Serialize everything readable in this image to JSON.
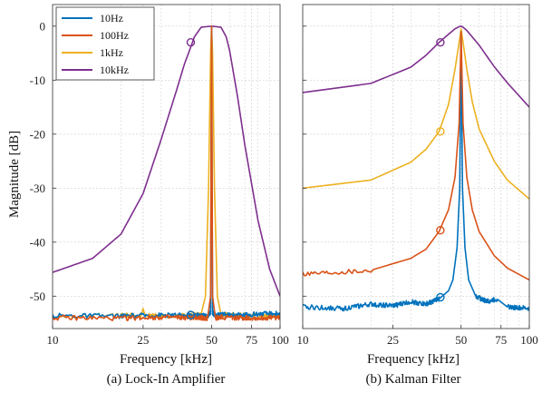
{
  "colors": {
    "10Hz": "#0072BD",
    "100Hz": "#D95319",
    "1kHz": "#EDB120",
    "10kHz": "#7E2F8E"
  },
  "legend_position": "top-left of left panel",
  "chart_data": [
    {
      "type": "line",
      "caption": "(a) Lock-In Amplifier",
      "xlabel": "Frequency [kHz]",
      "ylabel": "Magnitude [dB]",
      "xscale": "log",
      "xlim": [
        10,
        100
      ],
      "ylim": [
        -56,
        4
      ],
      "xticks": [
        10,
        25,
        50,
        75,
        100
      ],
      "xtick_labels": [
        "10",
        "25",
        "50",
        "75",
        "100"
      ],
      "yticks": [
        0,
        -10,
        -20,
        -30,
        -40,
        -50
      ],
      "ytick_labels": [
        "0",
        "-10",
        "-20",
        "-30",
        "-40",
        "-50"
      ],
      "grid": true,
      "legend": [
        "10Hz",
        "100Hz",
        "1kHz",
        "10kHz"
      ],
      "series": [
        {
          "name": "10Hz",
          "color": "#0072BD",
          "x": [
            10,
            20,
            30,
            40,
            45,
            48,
            49.5,
            50,
            50.5,
            52,
            55,
            65,
            80,
            100
          ],
          "y": [
            -53.6,
            -53.7,
            -53.5,
            -53.6,
            -53.5,
            -53.7,
            -53,
            0,
            -53,
            -53.6,
            -53.4,
            -53.5,
            -53.3,
            -53.2
          ]
        },
        {
          "name": "100Hz",
          "color": "#D95319",
          "x": [
            10,
            20,
            30,
            40,
            45,
            48,
            49.5,
            50,
            50.5,
            52,
            55,
            65,
            80,
            100
          ],
          "y": [
            -54.0,
            -54.1,
            -53.9,
            -54.0,
            -54.0,
            -54.1,
            -50,
            0,
            -50,
            -54.1,
            -53.9,
            -54.0,
            -54.1,
            -53.9
          ]
        },
        {
          "name": "1kHz",
          "color": "#EDB120",
          "x": [
            10,
            20,
            24.5,
            25,
            25.5,
            30,
            40,
            45,
            47,
            48.5,
            49.5,
            50,
            50.5,
            51.5,
            53,
            55,
            65,
            80,
            100
          ],
          "y": [
            -53.8,
            -53.6,
            -53.6,
            -52.3,
            -53.6,
            -53.7,
            -53.5,
            -53.3,
            -50,
            -30,
            -5,
            0,
            -5,
            -30,
            -50,
            -53.4,
            -53.5,
            -53.6,
            -53.7
          ]
        },
        {
          "name": "10kHz",
          "color": "#7E2F8E",
          "x": [
            10,
            15,
            20,
            25,
            30,
            35,
            38,
            40,
            42,
            45,
            50,
            55,
            58,
            60,
            65,
            70,
            80,
            90,
            100
          ],
          "y": [
            -45.6,
            -43,
            -38.5,
            -31,
            -21,
            -12,
            -7,
            -4.5,
            -2,
            -0.2,
            0,
            -0.2,
            -2,
            -4.5,
            -13,
            -22,
            -36,
            -45,
            -50
          ]
        }
      ],
      "markers": [
        {
          "series": "10kHz",
          "x": 40.5,
          "y": -3.0
        },
        {
          "series": "1kHz",
          "x": 40.5,
          "y": -53.5
        },
        {
          "series": "100Hz",
          "x": 40.5,
          "y": -53.5
        },
        {
          "series": "10Hz",
          "x": 40.5,
          "y": -53.5
        }
      ]
    },
    {
      "type": "line",
      "caption": "(b) Kalman Filter",
      "xlabel": "Frequency [kHz]",
      "xscale": "log",
      "xlim": [
        10,
        100
      ],
      "ylim": [
        -56,
        4
      ],
      "xticks": [
        10,
        25,
        50,
        75,
        100
      ],
      "xtick_labels": [
        "10",
        "25",
        "50",
        "75",
        "100"
      ],
      "grid": true,
      "series": [
        {
          "name": "10Hz",
          "color": "#0072BD",
          "x": [
            10,
            15,
            20,
            25,
            30,
            35,
            40,
            44,
            46,
            48,
            49.3,
            50,
            50.7,
            52,
            54,
            58,
            65,
            72,
            80,
            100
          ],
          "y": [
            -52,
            -52.3,
            -51.5,
            -51.8,
            -51,
            -51.5,
            -50.5,
            -49,
            -47,
            -41,
            -30,
            -1,
            -30,
            -41,
            -47,
            -50,
            -51,
            -50.5,
            -52,
            -52.3
          ]
        },
        {
          "name": "100Hz",
          "color": "#D95319",
          "x": [
            10,
            20,
            30,
            35,
            40,
            44,
            47,
            49,
            50,
            51,
            53,
            56,
            60,
            70,
            80,
            100
          ],
          "y": [
            -45.8,
            -45.2,
            -43,
            -41.3,
            -38,
            -34,
            -28,
            -18,
            -1,
            -18,
            -28,
            -34,
            -38,
            -42.5,
            -44.8,
            -47
          ]
        },
        {
          "name": "1kHz",
          "color": "#EDB120",
          "x": [
            10,
            20,
            30,
            35,
            40,
            44,
            47,
            49,
            50,
            51,
            53,
            56,
            60,
            70,
            80,
            100
          ],
          "y": [
            -30,
            -28.5,
            -25.2,
            -22.8,
            -19.5,
            -14.5,
            -8,
            -3,
            -0.5,
            -3,
            -8,
            -14,
            -19,
            -25,
            -28.5,
            -32
          ]
        },
        {
          "name": "10kHz",
          "color": "#7E2F8E",
          "x": [
            10,
            20,
            30,
            35,
            40,
            44,
            47,
            49,
            50,
            51,
            53,
            56,
            60,
            70,
            80,
            100
          ],
          "y": [
            -12.3,
            -10.6,
            -7.6,
            -5.4,
            -3,
            -1.5,
            -0.5,
            -0.1,
            0,
            -0.2,
            -0.8,
            -2,
            -3.5,
            -7.5,
            -10.5,
            -15
          ]
        }
      ],
      "markers": [
        {
          "series": "10kHz",
          "x": 40.5,
          "y": -3.0
        },
        {
          "series": "1kHz",
          "x": 40.5,
          "y": -19.5
        },
        {
          "series": "100Hz",
          "x": 40.5,
          "y": -37.8
        },
        {
          "series": "10Hz",
          "x": 40.5,
          "y": -50.2
        }
      ]
    }
  ]
}
